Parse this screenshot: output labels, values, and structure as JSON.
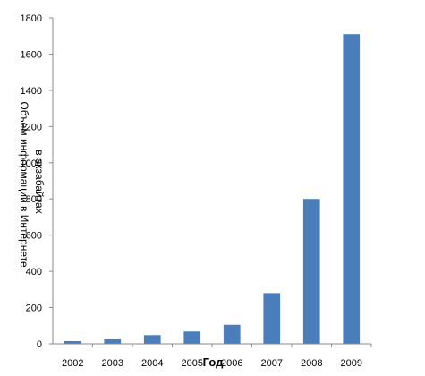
{
  "chart_data": {
    "type": "bar",
    "categories": [
      "2002",
      "2003",
      "2004",
      "2005",
      "2006",
      "2007",
      "2008",
      "2009"
    ],
    "values": [
      15,
      25,
      48,
      68,
      105,
      280,
      800,
      1710
    ],
    "ylim": [
      0,
      1800
    ],
    "yticks": [
      0,
      200,
      400,
      600,
      800,
      1000,
      1200,
      1400,
      1600,
      1800
    ],
    "xlabel": "Год",
    "ylabel_outer": "Объем информации в Интернете",
    "ylabel_inner": "в экзабайтах",
    "bar_color": "#4a7ebb",
    "grid": false,
    "legend": false
  }
}
